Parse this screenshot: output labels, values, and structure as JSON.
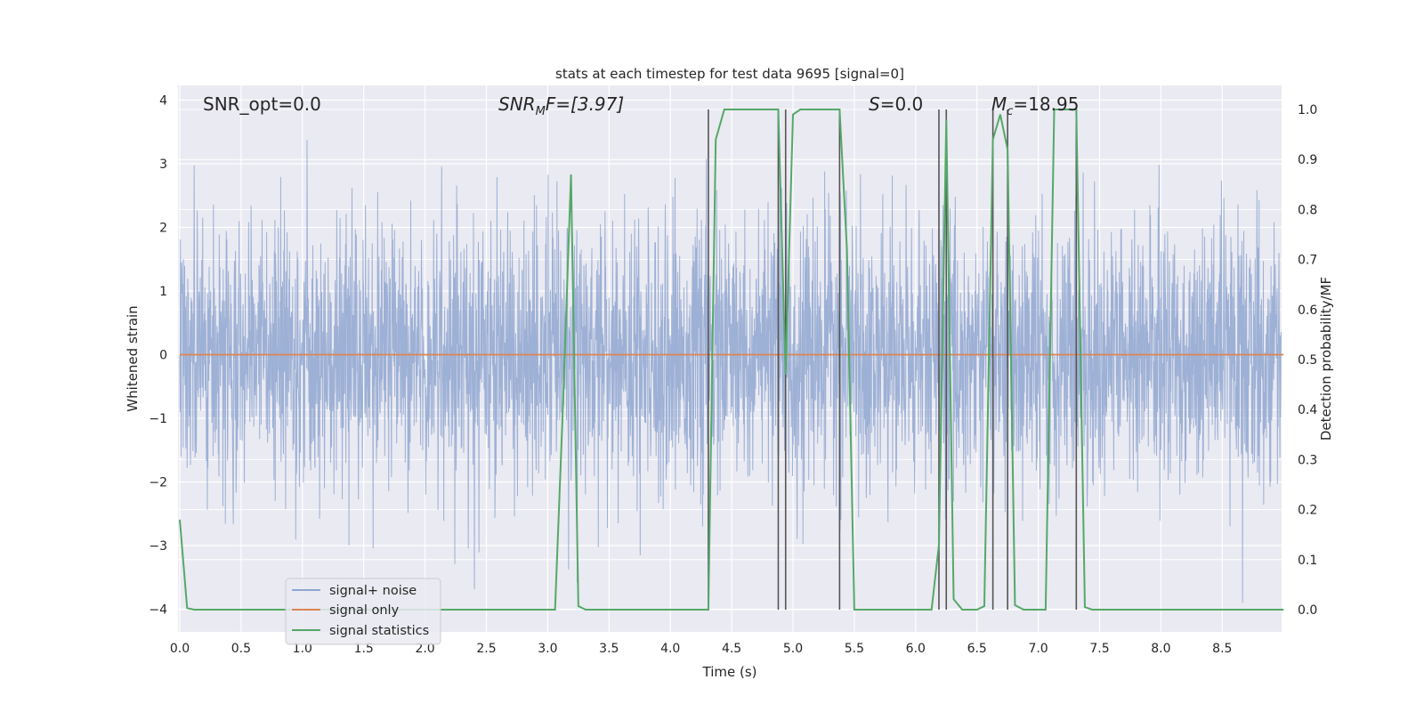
{
  "chart_data": {
    "type": "line",
    "title": "stats at each timestep for test data 9695 [signal=0]",
    "xlabel": "Time (s)",
    "ylabel_left": "Whitened strain",
    "ylabel_right": "Detection probability/MF",
    "xlim": [
      0.0,
      9.0
    ],
    "ylim_left": [
      -4.3,
      4.2
    ],
    "ylim_right": [
      -0.05,
      1.035
    ],
    "grid": true,
    "legend_position": "lower-left",
    "x_ticks": [
      "0.0",
      "0.5",
      "1.0",
      "1.5",
      "2.0",
      "2.5",
      "3.0",
      "3.5",
      "4.0",
      "4.5",
      "5.0",
      "5.5",
      "6.0",
      "6.5",
      "7.0",
      "7.5",
      "8.0",
      "8.5"
    ],
    "y_ticks_left": [
      "4",
      "3",
      "2",
      "1",
      "0",
      "−1",
      "−2",
      "−3",
      "−4"
    ],
    "y_ticks_right": [
      "1.0",
      "0.9",
      "0.8",
      "0.7",
      "0.6",
      "0.5",
      "0.4",
      "0.3",
      "0.2",
      "0.1",
      "0.0"
    ],
    "annotations": {
      "snr_opt": "SNR_opt=0.0",
      "snr_mf_main": "SNR",
      "snr_mf_sub": "M",
      "snr_mf_rest": "F=[3.97]",
      "s_main": "S",
      "s_rest": "=0.0",
      "mc_main": "M",
      "mc_sub": "c",
      "mc_rest": "=18.95"
    },
    "series": [
      {
        "name": "signal+ noise",
        "color": "#8fa6d0",
        "description": "whitened noise, sampled densely; roughly Gaussian with std ~1 and spikes up to ~3.8"
      },
      {
        "name": "signal only",
        "color": "#dd8452",
        "x": [
          0.0,
          9.0
        ],
        "y": [
          0.0,
          0.0
        ]
      },
      {
        "name": "signal statistics",
        "color": "#55a868",
        "x": [
          0.0,
          0.06,
          0.12,
          3.06,
          3.12,
          3.19,
          3.25,
          3.31,
          4.31,
          4.37,
          4.44,
          4.5,
          4.88,
          4.94,
          5.0,
          5.06,
          5.38,
          5.44,
          5.5,
          6.13,
          6.19,
          6.25,
          6.31,
          6.38,
          6.5,
          6.56,
          6.63,
          6.69,
          6.75,
          6.81,
          6.88,
          7.06,
          7.13,
          7.31,
          7.38,
          7.44,
          9.0
        ],
        "y": [
          0.18,
          0.003,
          0.0,
          0.0,
          0.38,
          0.87,
          0.007,
          0.0,
          0.0,
          0.94,
          1.0,
          1.0,
          1.0,
          0.47,
          0.99,
          1.0,
          1.0,
          0.72,
          0.0,
          0.0,
          0.13,
          0.98,
          0.021,
          0.0,
          0.0,
          0.007,
          0.94,
          0.99,
          0.92,
          0.009,
          0.0,
          0.0,
          1.0,
          1.0,
          0.005,
          0.0,
          0.0
        ]
      }
    ],
    "vertical_lines": {
      "color": "#555555",
      "x": [
        4.31,
        4.88,
        4.94,
        5.38,
        6.19,
        6.25,
        6.63,
        6.75,
        7.31
      ]
    }
  }
}
